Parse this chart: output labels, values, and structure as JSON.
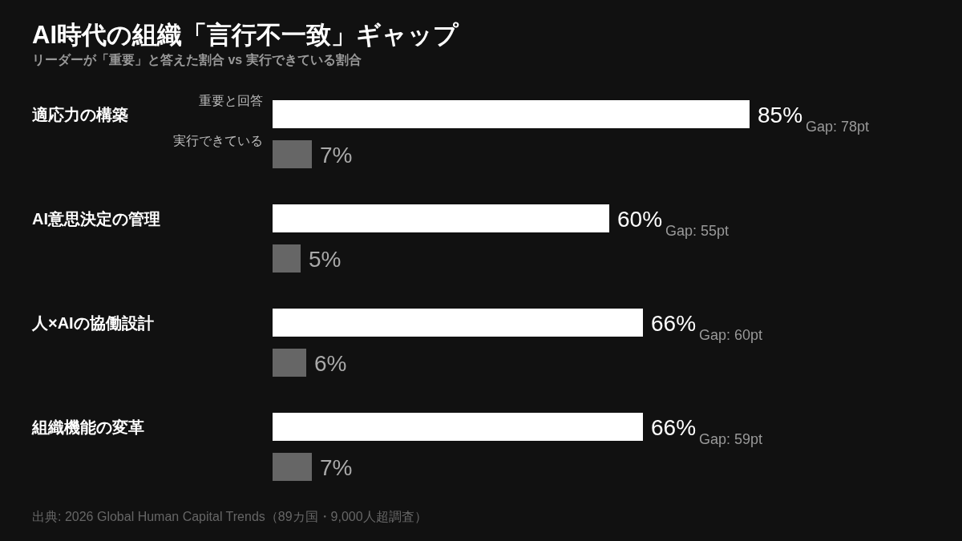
{
  "chart_data": {
    "type": "bar",
    "orientation": "horizontal",
    "title": "AI時代の組織「言行不一致」ギャップ",
    "subtitle": "リーダーが「重要」と答えた割合 vs 実行できている割合",
    "categories": [
      "適応力の構築",
      "AI意思決定の管理",
      "人×AIの協働設計",
      "組織機能の変革"
    ],
    "series": [
      {
        "name": "重要と回答",
        "color": "#ffffff",
        "values": [
          85,
          60,
          66,
          66
        ],
        "value_labels": [
          "85%",
          "60%",
          "66%",
          "66%"
        ]
      },
      {
        "name": "実行できている",
        "color": "#666666",
        "values": [
          7,
          5,
          6,
          7
        ],
        "value_labels": [
          "7%",
          "5%",
          "6%",
          "7%"
        ]
      }
    ],
    "annotations": [
      "Gap: 78pt",
      "Gap: 55pt",
      "Gap: 60pt",
      "Gap: 59pt",
      "出典: 2026 Global Human Capital Trends（89カ国・9,000人超調査）"
    ],
    "legend": false
  }
}
